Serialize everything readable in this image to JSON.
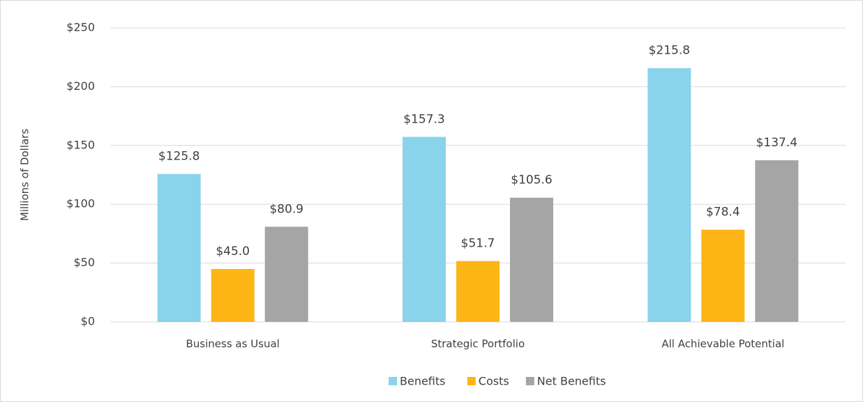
{
  "chart_data": {
    "type": "bar",
    "y_label": "Millions of Dollars",
    "categories": [
      "Business as Usual",
      "Strategic Portfolio",
      "All Achievable Potential"
    ],
    "series": [
      {
        "name": "Benefits",
        "color": "#89d3ec",
        "values": [
          125.8,
          157.3,
          215.8
        ],
        "value_labels": [
          "$125.8",
          "$157.3",
          "$215.8"
        ]
      },
      {
        "name": "Costs",
        "color": "#fdb515",
        "values": [
          45.0,
          51.7,
          78.4
        ],
        "value_labels": [
          "$45.0",
          "$51.7",
          "$78.4"
        ]
      },
      {
        "name": "Net Benefits",
        "color": "#a5a5a5",
        "values": [
          80.9,
          105.6,
          137.4
        ],
        "value_labels": [
          "$80.9",
          "$105.6",
          "$137.4"
        ]
      }
    ],
    "ylim": [
      0,
      250
    ],
    "yticks": [
      {
        "value": 0,
        "label": "$0"
      },
      {
        "value": 50,
        "label": "$50"
      },
      {
        "value": 100,
        "label": "$100"
      },
      {
        "value": 150,
        "label": "$150"
      },
      {
        "value": 200,
        "label": "$200"
      },
      {
        "value": 250,
        "label": "$250"
      }
    ],
    "grid": true,
    "legend": "bottom"
  }
}
